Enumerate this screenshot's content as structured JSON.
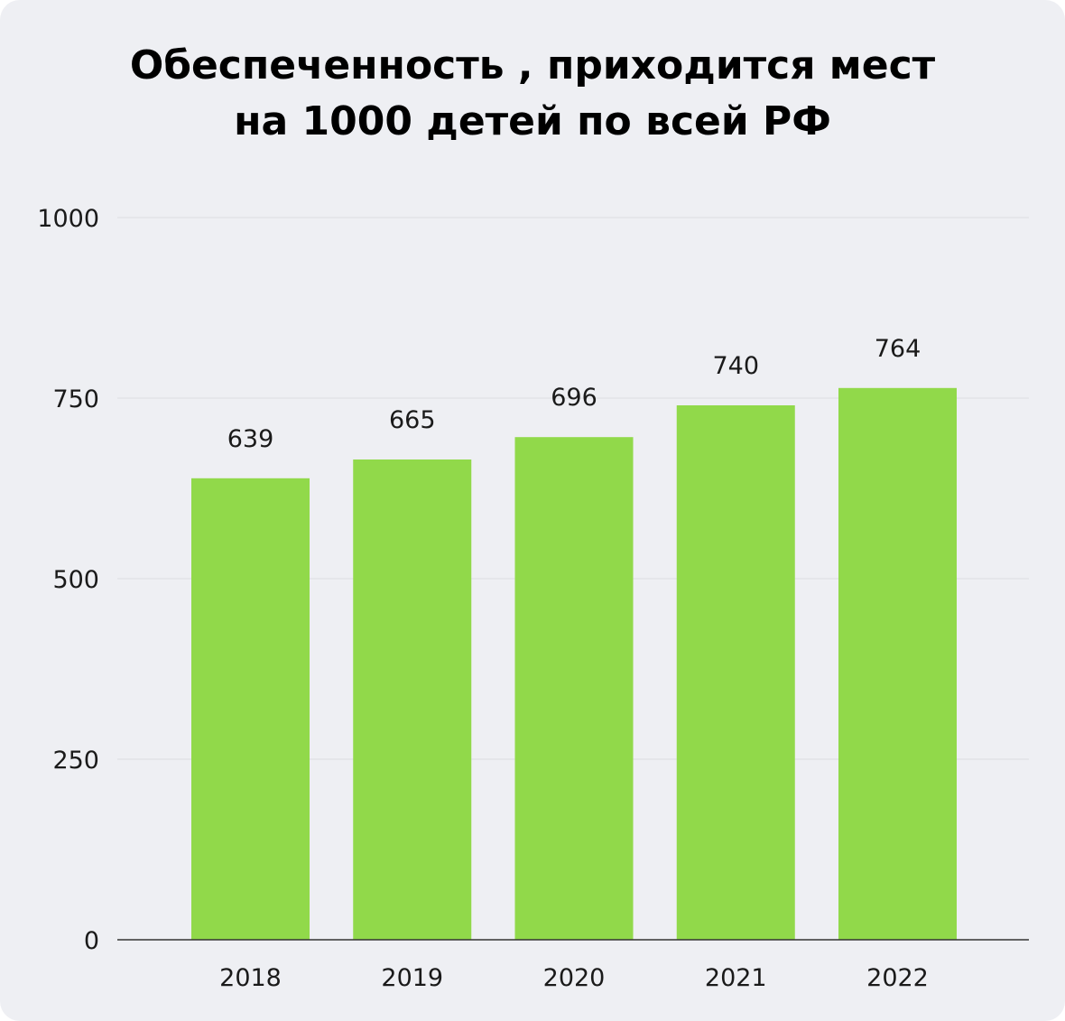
{
  "chart_data": {
    "type": "bar",
    "title_lines": [
      "Обеспеченность , приходится мест",
      "на 1000 детей по всей РФ"
    ],
    "categories": [
      "2018",
      "2019",
      "2020",
      "2021",
      "2022"
    ],
    "values": [
      639,
      665,
      696,
      740,
      764
    ],
    "data_labels": [
      "639",
      "665",
      "696",
      "740",
      "764"
    ],
    "y_ticks": [
      0,
      250,
      500,
      750,
      1000
    ],
    "y_tick_labels": [
      "0",
      "250",
      "500",
      "750",
      "1000"
    ],
    "ylim": [
      0,
      1000
    ],
    "xlabel": "",
    "ylabel": "",
    "grid": true,
    "legend": "none",
    "bar_color": "#91d94a",
    "background_color": "#eeeff3",
    "axis_color": "#333333",
    "grid_color": "#dcdde2"
  }
}
